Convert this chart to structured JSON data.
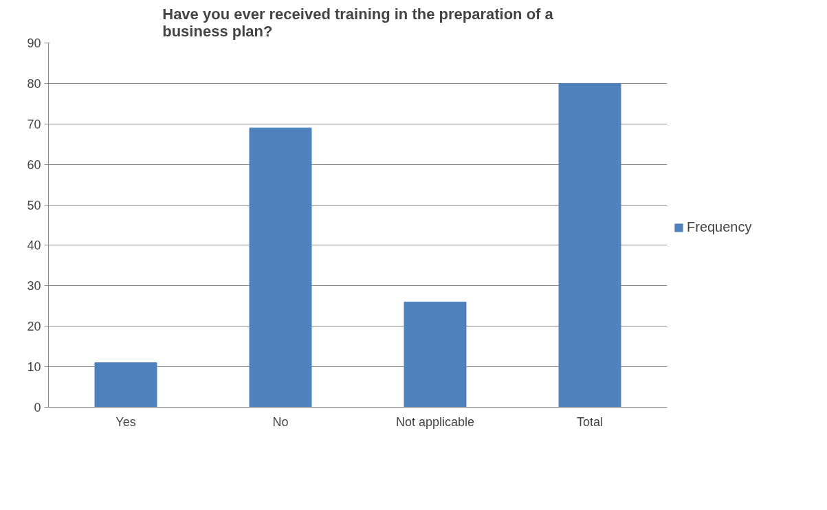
{
  "chart_data": {
    "type": "bar",
    "title": "Have you ever received training in the preparation of a business plan?",
    "categories": [
      "Yes",
      "No",
      "Not applicable",
      "Total"
    ],
    "series": [
      {
        "name": "Frequency",
        "color": "#4f81bd",
        "values": [
          11,
          69,
          26,
          80
        ]
      }
    ],
    "ylim": [
      0,
      90
    ],
    "yticks": [
      0,
      10,
      20,
      30,
      40,
      50,
      60,
      70,
      80,
      90
    ],
    "grid": "y",
    "legend": "right"
  }
}
